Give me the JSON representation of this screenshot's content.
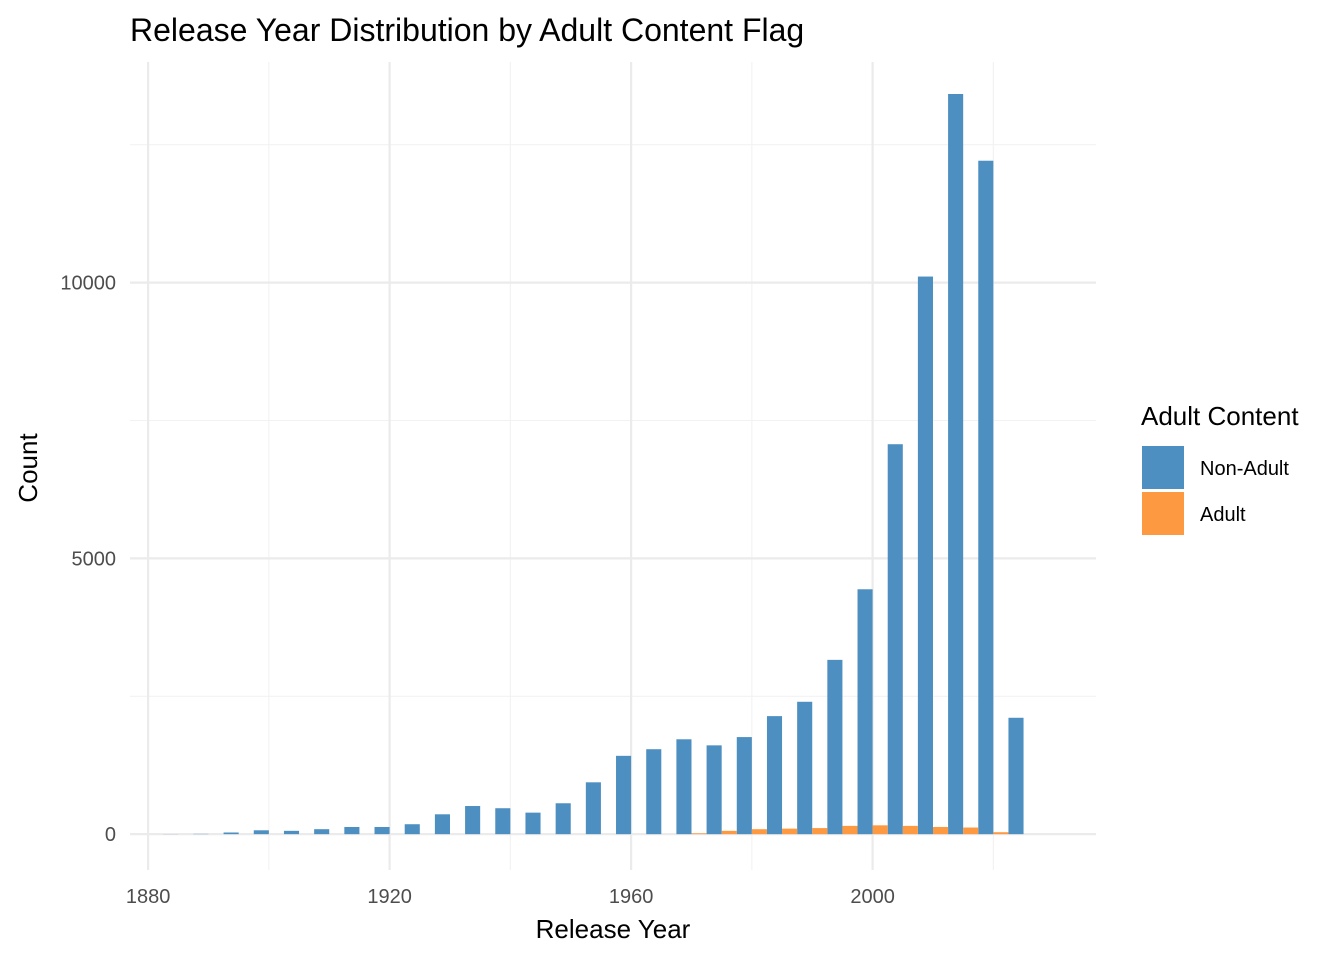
{
  "chart_data": {
    "type": "bar",
    "title": "Release Year Distribution by Adult Content Flag",
    "xlabel": "Release Year",
    "ylabel": "Count",
    "xlim": [
      1877,
      2037
    ],
    "ylim": [
      -650,
      14000
    ],
    "x_ticks": [
      1880,
      1920,
      1960,
      2000
    ],
    "x_minor_ticks": [
      1900,
      1940,
      1980,
      2020
    ],
    "y_ticks": [
      0,
      5000,
      10000
    ],
    "y_minor_ticks": [
      2500,
      7500,
      12500
    ],
    "grid": true,
    "bin_width": 5,
    "x": [
      1885,
      1890,
      1895,
      1900,
      1905,
      1910,
      1915,
      1920,
      1925,
      1930,
      1935,
      1940,
      1945,
      1950,
      1955,
      1960,
      1965,
      1970,
      1975,
      1980,
      1985,
      1990,
      1995,
      2000,
      2005,
      2010,
      2015,
      2020,
      2025
    ],
    "legend_title": "Adult Content",
    "legend_position": "right",
    "series": [
      {
        "name": "Non-Adult",
        "color": "#4d8fc1",
        "values": [
          2,
          5,
          30,
          70,
          60,
          90,
          130,
          130,
          180,
          360,
          510,
          470,
          390,
          560,
          940,
          1420,
          1540,
          1720,
          1610,
          1760,
          2140,
          2400,
          3160,
          4440,
          7070,
          10110,
          13420,
          12210,
          2110
        ]
      },
      {
        "name": "Adult",
        "color": "#fd9940",
        "values": [
          0,
          0,
          0,
          0,
          0,
          0,
          0,
          0,
          0,
          0,
          0,
          0,
          0,
          0,
          0,
          0,
          0,
          15,
          60,
          90,
          100,
          110,
          150,
          160,
          150,
          130,
          120,
          35,
          0
        ]
      }
    ]
  }
}
